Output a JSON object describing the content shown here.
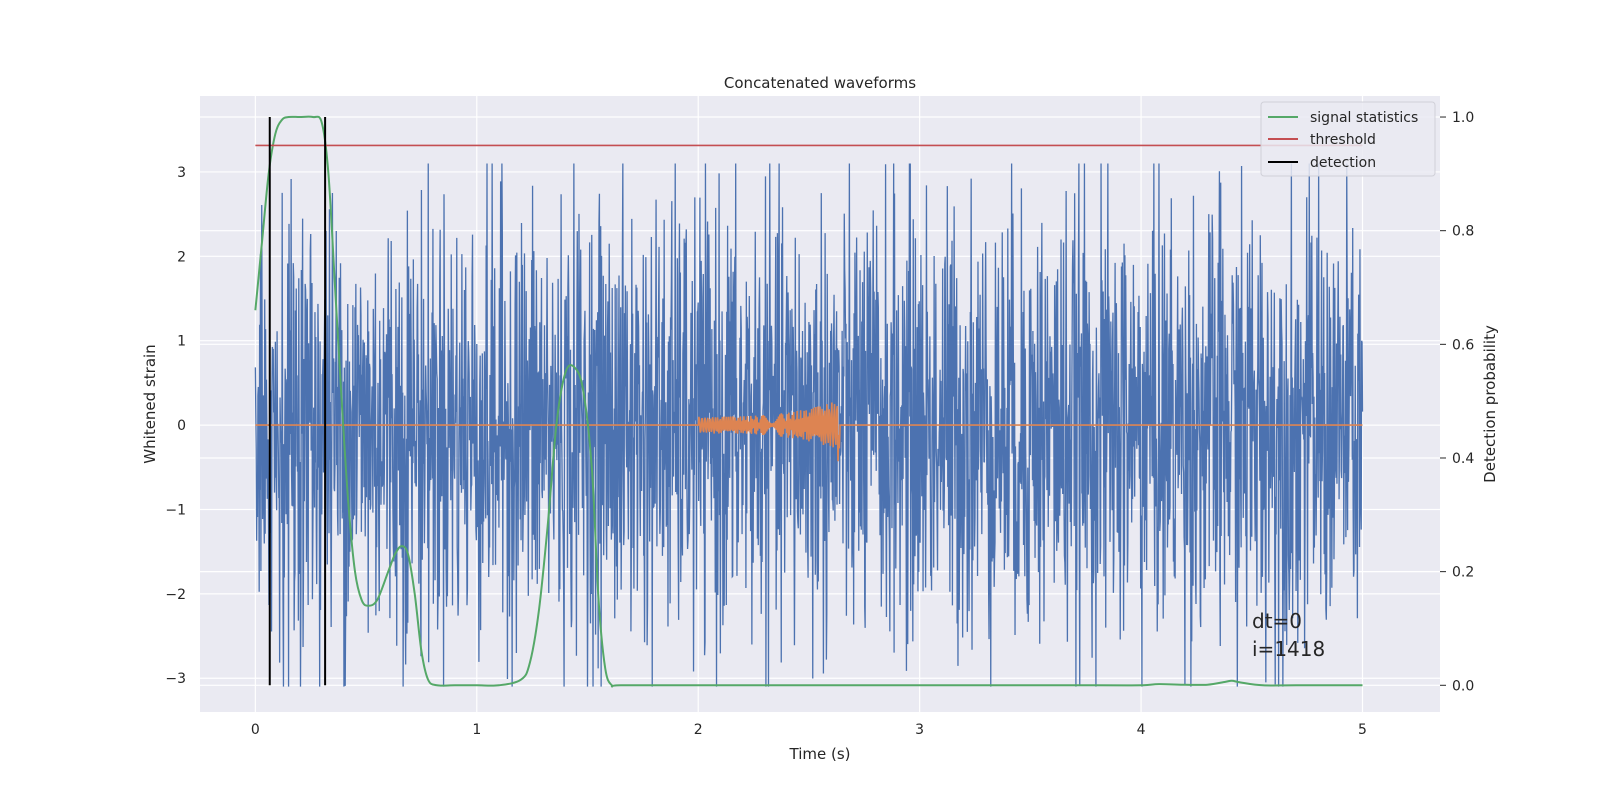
{
  "chart_data": {
    "type": "line",
    "title": "Concatenated waveforms",
    "xlabel": "Time (s)",
    "ylabel": "Whitened strain",
    "y2label": "Detection probability",
    "xlim": [
      -0.25,
      5.35
    ],
    "ylim": [
      -3.4,
      3.9
    ],
    "y2lim": [
      -0.047,
      1.037
    ],
    "xticks": [
      "0",
      "1",
      "2",
      "3",
      "4",
      "5"
    ],
    "yticks": [
      "3",
      "2",
      "1",
      "0",
      "−1",
      "−2",
      "−3"
    ],
    "y2ticks": [
      "1.0",
      "0.8",
      "0.6",
      "0.4",
      "0.2",
      "0.0"
    ],
    "grid": true,
    "legend_position": "top-right",
    "annotations": [
      "dt=0",
      "i=1418"
    ],
    "series": [
      {
        "name": "",
        "axis": "left",
        "color": "#4c72b0",
        "description": "noisy whitened strain, 0 to 5 s, amplitude roughly within ±3",
        "x_range": [
          0,
          5
        ],
        "amplitude": 1.3
      },
      {
        "name": "",
        "axis": "left",
        "color": "#dd8452",
        "description": "injected chirp signal, starts ~2.0 s, merges ~2.64 s, zero elsewhere",
        "x_range": [
          0,
          5
        ],
        "chirp_start": 2.0,
        "chirp_end": 2.64,
        "peak_amplitude": 0.5
      },
      {
        "name": "signal statistics",
        "axis": "right",
        "color": "#55a868",
        "x": [
          0.0,
          0.03,
          0.06,
          0.09,
          0.12,
          0.15,
          0.2,
          0.26,
          0.3,
          0.33,
          0.36,
          0.39,
          0.42,
          0.45,
          0.48,
          0.51,
          0.55,
          0.6,
          0.63,
          0.66,
          0.69,
          0.72,
          0.75,
          0.78,
          0.82,
          0.9,
          1.0,
          1.1,
          1.2,
          1.24,
          1.28,
          1.32,
          1.36,
          1.4,
          1.44,
          1.48,
          1.52,
          1.55,
          1.58,
          1.61,
          1.65,
          2.0,
          3.0,
          3.8,
          4.0,
          4.08,
          4.2,
          4.3,
          4.38,
          4.41,
          4.45,
          4.55,
          4.7,
          5.0
        ],
        "y": [
          0.66,
          0.78,
          0.9,
          0.97,
          0.995,
          1.0,
          1.0,
          1.0,
          0.99,
          0.9,
          0.7,
          0.5,
          0.32,
          0.2,
          0.15,
          0.14,
          0.15,
          0.2,
          0.23,
          0.245,
          0.23,
          0.16,
          0.06,
          0.01,
          0.0,
          0.0,
          0.0,
          0.0,
          0.01,
          0.04,
          0.13,
          0.28,
          0.46,
          0.55,
          0.56,
          0.52,
          0.38,
          0.15,
          0.03,
          0.0,
          0.0,
          0.0,
          0.0,
          0.0,
          0.0,
          0.002,
          0.001,
          0.001,
          0.006,
          0.008,
          0.005,
          0.0,
          0.0,
          0.0
        ]
      },
      {
        "name": "threshold",
        "axis": "right",
        "color": "#c44e52",
        "x": [
          0,
          5
        ],
        "y": [
          0.95,
          0.95
        ]
      },
      {
        "name": "detection",
        "axis": "right",
        "color": "#000000",
        "x": [
          0.065,
          0.315
        ],
        "y_range": [
          0,
          1
        ]
      }
    ]
  }
}
